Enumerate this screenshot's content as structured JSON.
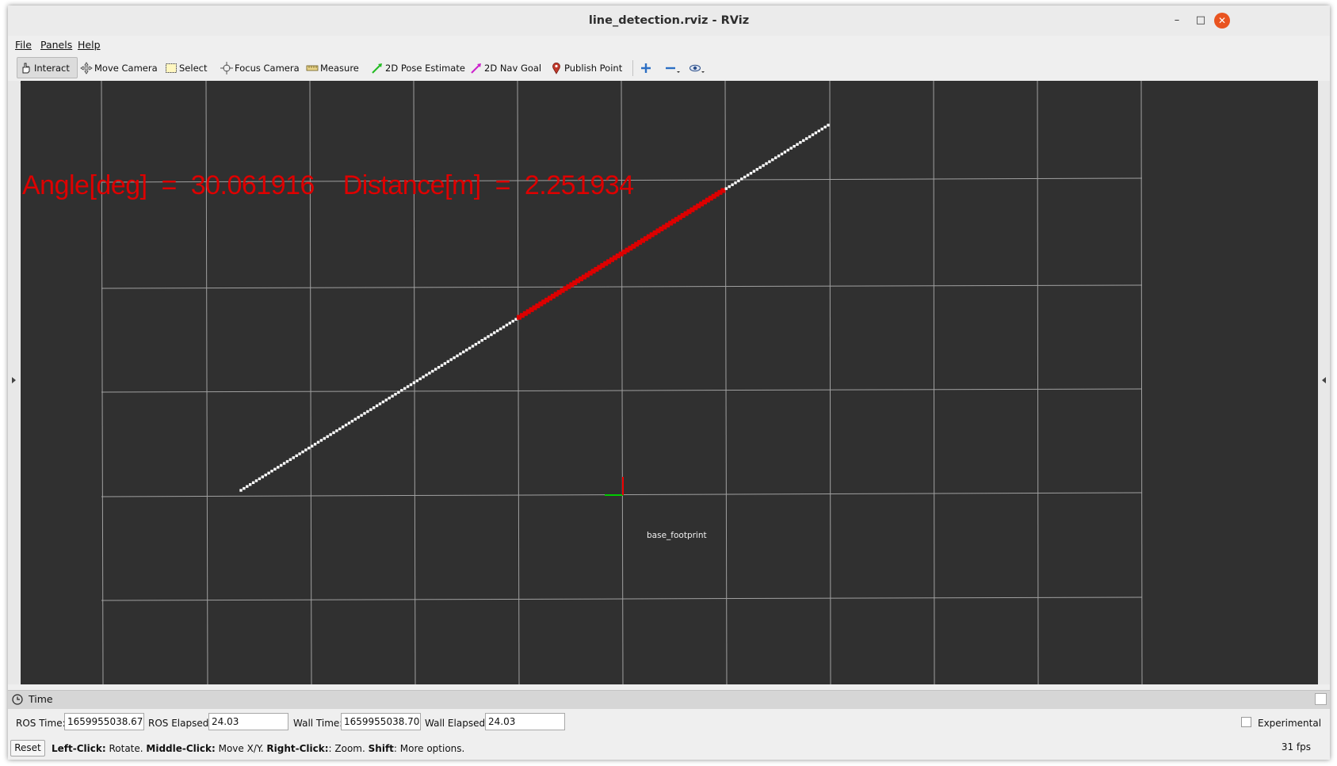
{
  "window": {
    "title": "line_detection.rviz - RViz"
  },
  "menubar": {
    "items": [
      {
        "label": "File"
      },
      {
        "label": "Panels"
      },
      {
        "label": "Help"
      }
    ]
  },
  "toolbar": {
    "tools": [
      {
        "label": "Interact",
        "icon": "hand-icon",
        "active": true
      },
      {
        "label": "Move Camera",
        "icon": "move-camera-icon"
      },
      {
        "label": "Select",
        "icon": "select-box-icon"
      },
      {
        "label": "Focus Camera",
        "icon": "focus-camera-icon"
      },
      {
        "label": "Measure",
        "icon": "ruler-icon"
      },
      {
        "label": "2D Pose Estimate",
        "icon": "green-arrow-icon"
      },
      {
        "label": "2D Nav Goal",
        "icon": "magenta-arrow-icon"
      },
      {
        "label": "Publish Point",
        "icon": "map-pin-icon"
      }
    ],
    "extra_icons": [
      "add-tool-icon",
      "remove-tool-icon",
      "eye-icon"
    ]
  },
  "viewport": {
    "overlay_text": "Angle[deg]  =  30.061916    Distance[m]  =  2.251934",
    "frame_label": "base_footprint",
    "colors": {
      "background": "#303030",
      "grid": "#a0a0a0",
      "detected_line": "#dd0000",
      "scan_points": "#ffffff"
    }
  },
  "time_panel": {
    "title": "Time",
    "ros_time_label": "ROS Time:",
    "ros_time": "1659955038.67",
    "ros_elapsed_label": "ROS Elapsed:",
    "ros_elapsed": "24.03",
    "wall_time_label": "Wall Time:",
    "wall_time": "1659955038.70",
    "wall_elapsed_label": "Wall Elapsed:",
    "wall_elapsed": "24.03",
    "experimental_label": "Experimental"
  },
  "status": {
    "reset_label": "Reset",
    "help": {
      "left_click": "Left-Click:",
      "left_action": " Rotate. ",
      "middle_click": "Middle-Click:",
      "middle_action": " Move X/Y. ",
      "right_click": "Right-Click:",
      "right_action": ": Zoom. ",
      "shift": "Shift",
      "shift_action": ": More options."
    },
    "fps": "31 fps"
  }
}
